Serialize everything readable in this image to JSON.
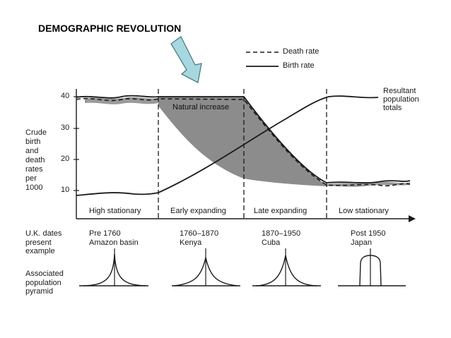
{
  "banner": "DEMOGRAPHIC REVOLUTION",
  "legend": {
    "death": "Death rate",
    "birth": "Birth rate"
  },
  "y_axis": {
    "label": "Crude\nbirth\nand\ndeath\nrates\nper\n1000",
    "ticks": [
      "40",
      "30",
      "20",
      "10"
    ]
  },
  "shaded_label": "Natural increase",
  "curve_label": "Resultant\npopulation\ntotals",
  "stages": [
    "High stationary",
    "Early expanding",
    "Late expanding",
    "Low stationary"
  ],
  "row_labels": {
    "dates": "U.K. dates\npresent\nexample",
    "pyramid": "Associated\npopulation\npyramid"
  },
  "examples": [
    {
      "dates": "Pre 1760",
      "place": "Amazon basin"
    },
    {
      "dates": "1760–1870",
      "place": "Kenya"
    },
    {
      "dates": "1870–1950",
      "place": "Cuba"
    },
    {
      "dates": "Post 1950",
      "place": "Japan"
    }
  ],
  "colors": {
    "shade": "#8c8c8c",
    "arrow_fill": "#a8d8df",
    "arrow_stroke": "#4a7c84",
    "ink": "#1a1a1a"
  }
}
